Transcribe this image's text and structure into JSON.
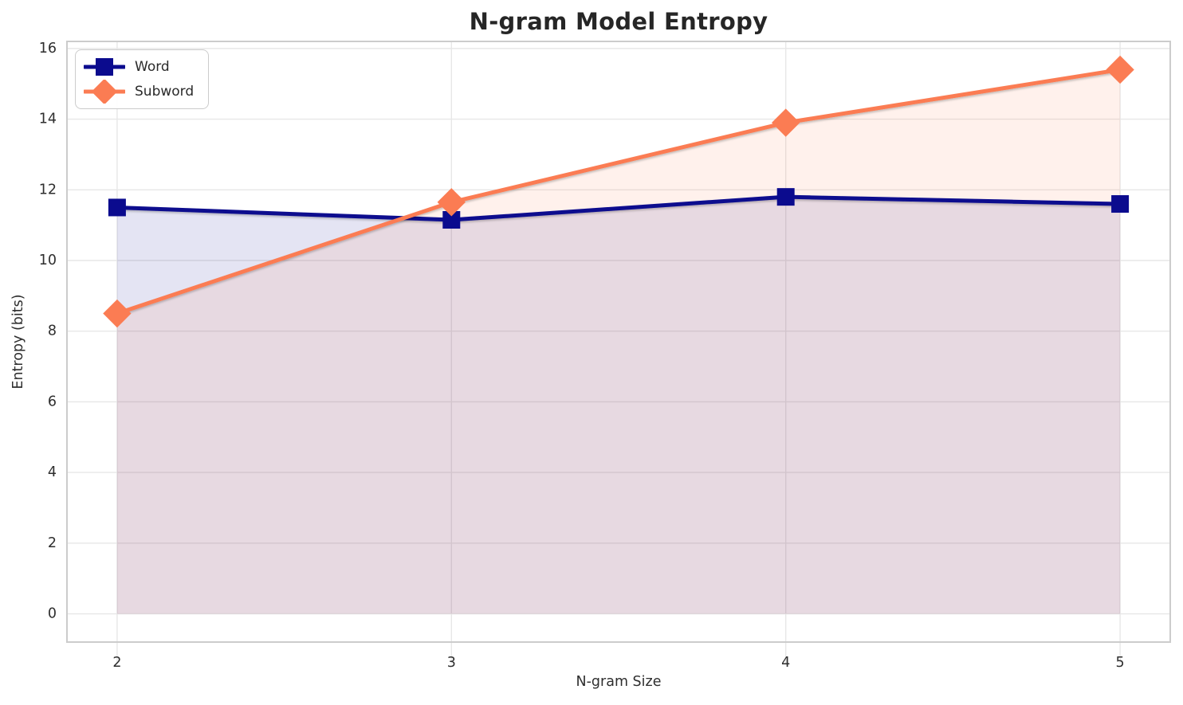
{
  "chart_data": {
    "type": "line",
    "title": "N-gram Model Entropy",
    "xlabel": "N-gram Size",
    "ylabel": "Entropy (bits)",
    "x": [
      2,
      3,
      4,
      5
    ],
    "xticks": [
      "2",
      "3",
      "4",
      "5"
    ],
    "yticks": [
      0,
      2,
      4,
      6,
      8,
      10,
      12,
      14,
      16
    ],
    "xlim": [
      1.85,
      5.15
    ],
    "ylim": [
      -0.8,
      16.2
    ],
    "grid": true,
    "legend_position": "upper-left",
    "fill_to_zero": true,
    "fill_opacity": 0.11,
    "series": [
      {
        "name": "Word",
        "color": "#0b0b8e",
        "marker": "square",
        "values": [
          11.5,
          11.15,
          11.8,
          11.6
        ]
      },
      {
        "name": "Subword",
        "color": "#fb7c53",
        "marker": "diamond",
        "values": [
          8.5,
          11.65,
          13.9,
          15.4
        ]
      }
    ],
    "styles": {
      "grid_color": "#e7e7e7",
      "spine_color": "#cccccc",
      "tick_label_color": "#2e2e2e",
      "title_color": "#262626",
      "background": "#ffffff"
    }
  }
}
